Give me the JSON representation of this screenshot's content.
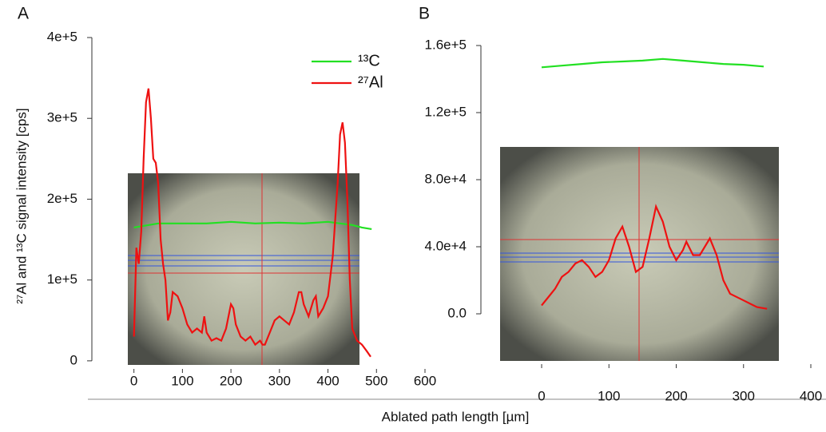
{
  "chart_data": [
    {
      "type": "line",
      "panel_label": "A",
      "ylabel": "²⁷Al and ¹³C signal intensity [cps]",
      "xlabel": "Ablated path length [µm]",
      "xlim": [
        -90,
        600
      ],
      "xticks": [
        0,
        100,
        200,
        300,
        400,
        500,
        600
      ],
      "ylim": [
        -10000,
        400000
      ],
      "yticks": [
        0,
        {
          "value": 100000,
          "label": "1e+5"
        },
        {
          "value": 200000,
          "label": "2e+5"
        },
        {
          "value": 300000,
          "label": "3e+5"
        },
        {
          "value": 400000,
          "label": "4e+5"
        }
      ],
      "legend": "upper right",
      "series": [
        {
          "name": "¹³C",
          "color": "#22e022",
          "x": [
            0,
            50,
            100,
            150,
            200,
            250,
            300,
            350,
            400,
            450,
            470,
            490
          ],
          "values": [
            165000,
            170000,
            170000,
            170000,
            172000,
            170000,
            171000,
            170000,
            172000,
            168000,
            165000,
            163000
          ]
        },
        {
          "name": "²⁷Al",
          "color": "#ee1111",
          "x": [
            0,
            5,
            10,
            15,
            20,
            25,
            30,
            35,
            40,
            45,
            50,
            55,
            60,
            65,
            70,
            75,
            80,
            90,
            100,
            110,
            120,
            130,
            140,
            145,
            150,
            160,
            170,
            180,
            190,
            200,
            205,
            210,
            220,
            230,
            240,
            250,
            260,
            265,
            270,
            280,
            290,
            300,
            310,
            320,
            330,
            340,
            345,
            350,
            360,
            370,
            375,
            380,
            390,
            400,
            410,
            420,
            425,
            430,
            435,
            440,
            445,
            450,
            460,
            470,
            480,
            488
          ],
          "values": [
            30000,
            140000,
            120000,
            160000,
            250000,
            320000,
            337000,
            300000,
            250000,
            245000,
            220000,
            150000,
            120000,
            100000,
            50000,
            60000,
            85000,
            80000,
            65000,
            45000,
            35000,
            40000,
            35000,
            55000,
            35000,
            25000,
            28000,
            25000,
            40000,
            70000,
            65000,
            45000,
            30000,
            25000,
            30000,
            20000,
            25000,
            20000,
            20000,
            35000,
            50000,
            55000,
            50000,
            45000,
            60000,
            85000,
            85000,
            70000,
            55000,
            75000,
            80000,
            55000,
            65000,
            80000,
            130000,
            220000,
            280000,
            295000,
            270000,
            200000,
            100000,
            40000,
            25000,
            20000,
            12000,
            5000
          ]
        }
      ]
    },
    {
      "type": "line",
      "panel_label": "B",
      "xlim": [
        -95,
        400
      ],
      "xticks": [
        0,
        100,
        200,
        300,
        400
      ],
      "ylim": [
        -30000,
        160000
      ],
      "yticks": [
        {
          "value": 0,
          "label": "0.0"
        },
        {
          "value": 40000,
          "label": "4.0e+4"
        },
        {
          "value": 80000,
          "label": "8.0e+4"
        },
        {
          "value": 120000,
          "label": "1.2e+5"
        },
        {
          "value": 160000,
          "label": "1.6e+5"
        }
      ],
      "series": [
        {
          "name": "¹³C",
          "color": "#22e022",
          "x": [
            0,
            30,
            60,
            90,
            120,
            150,
            180,
            210,
            240,
            270,
            300,
            330
          ],
          "values": [
            147000,
            148000,
            149000,
            150000,
            150500,
            151000,
            152000,
            151000,
            150000,
            149000,
            148500,
            147500
          ]
        },
        {
          "name": "²⁷Al",
          "color": "#ee1111",
          "x": [
            0,
            10,
            20,
            30,
            40,
            50,
            60,
            70,
            80,
            90,
            100,
            110,
            120,
            130,
            140,
            150,
            160,
            170,
            180,
            190,
            200,
            210,
            215,
            225,
            235,
            250,
            260,
            270,
            280,
            300,
            320,
            335
          ],
          "values": [
            5000,
            10000,
            15000,
            22000,
            25000,
            30000,
            32000,
            28000,
            22000,
            25000,
            32000,
            45000,
            52000,
            40000,
            25000,
            28000,
            45000,
            64000,
            55000,
            40000,
            32000,
            38000,
            43000,
            35000,
            35000,
            45000,
            35000,
            20000,
            12000,
            8000,
            4000,
            3000
          ]
        }
      ]
    }
  ]
}
